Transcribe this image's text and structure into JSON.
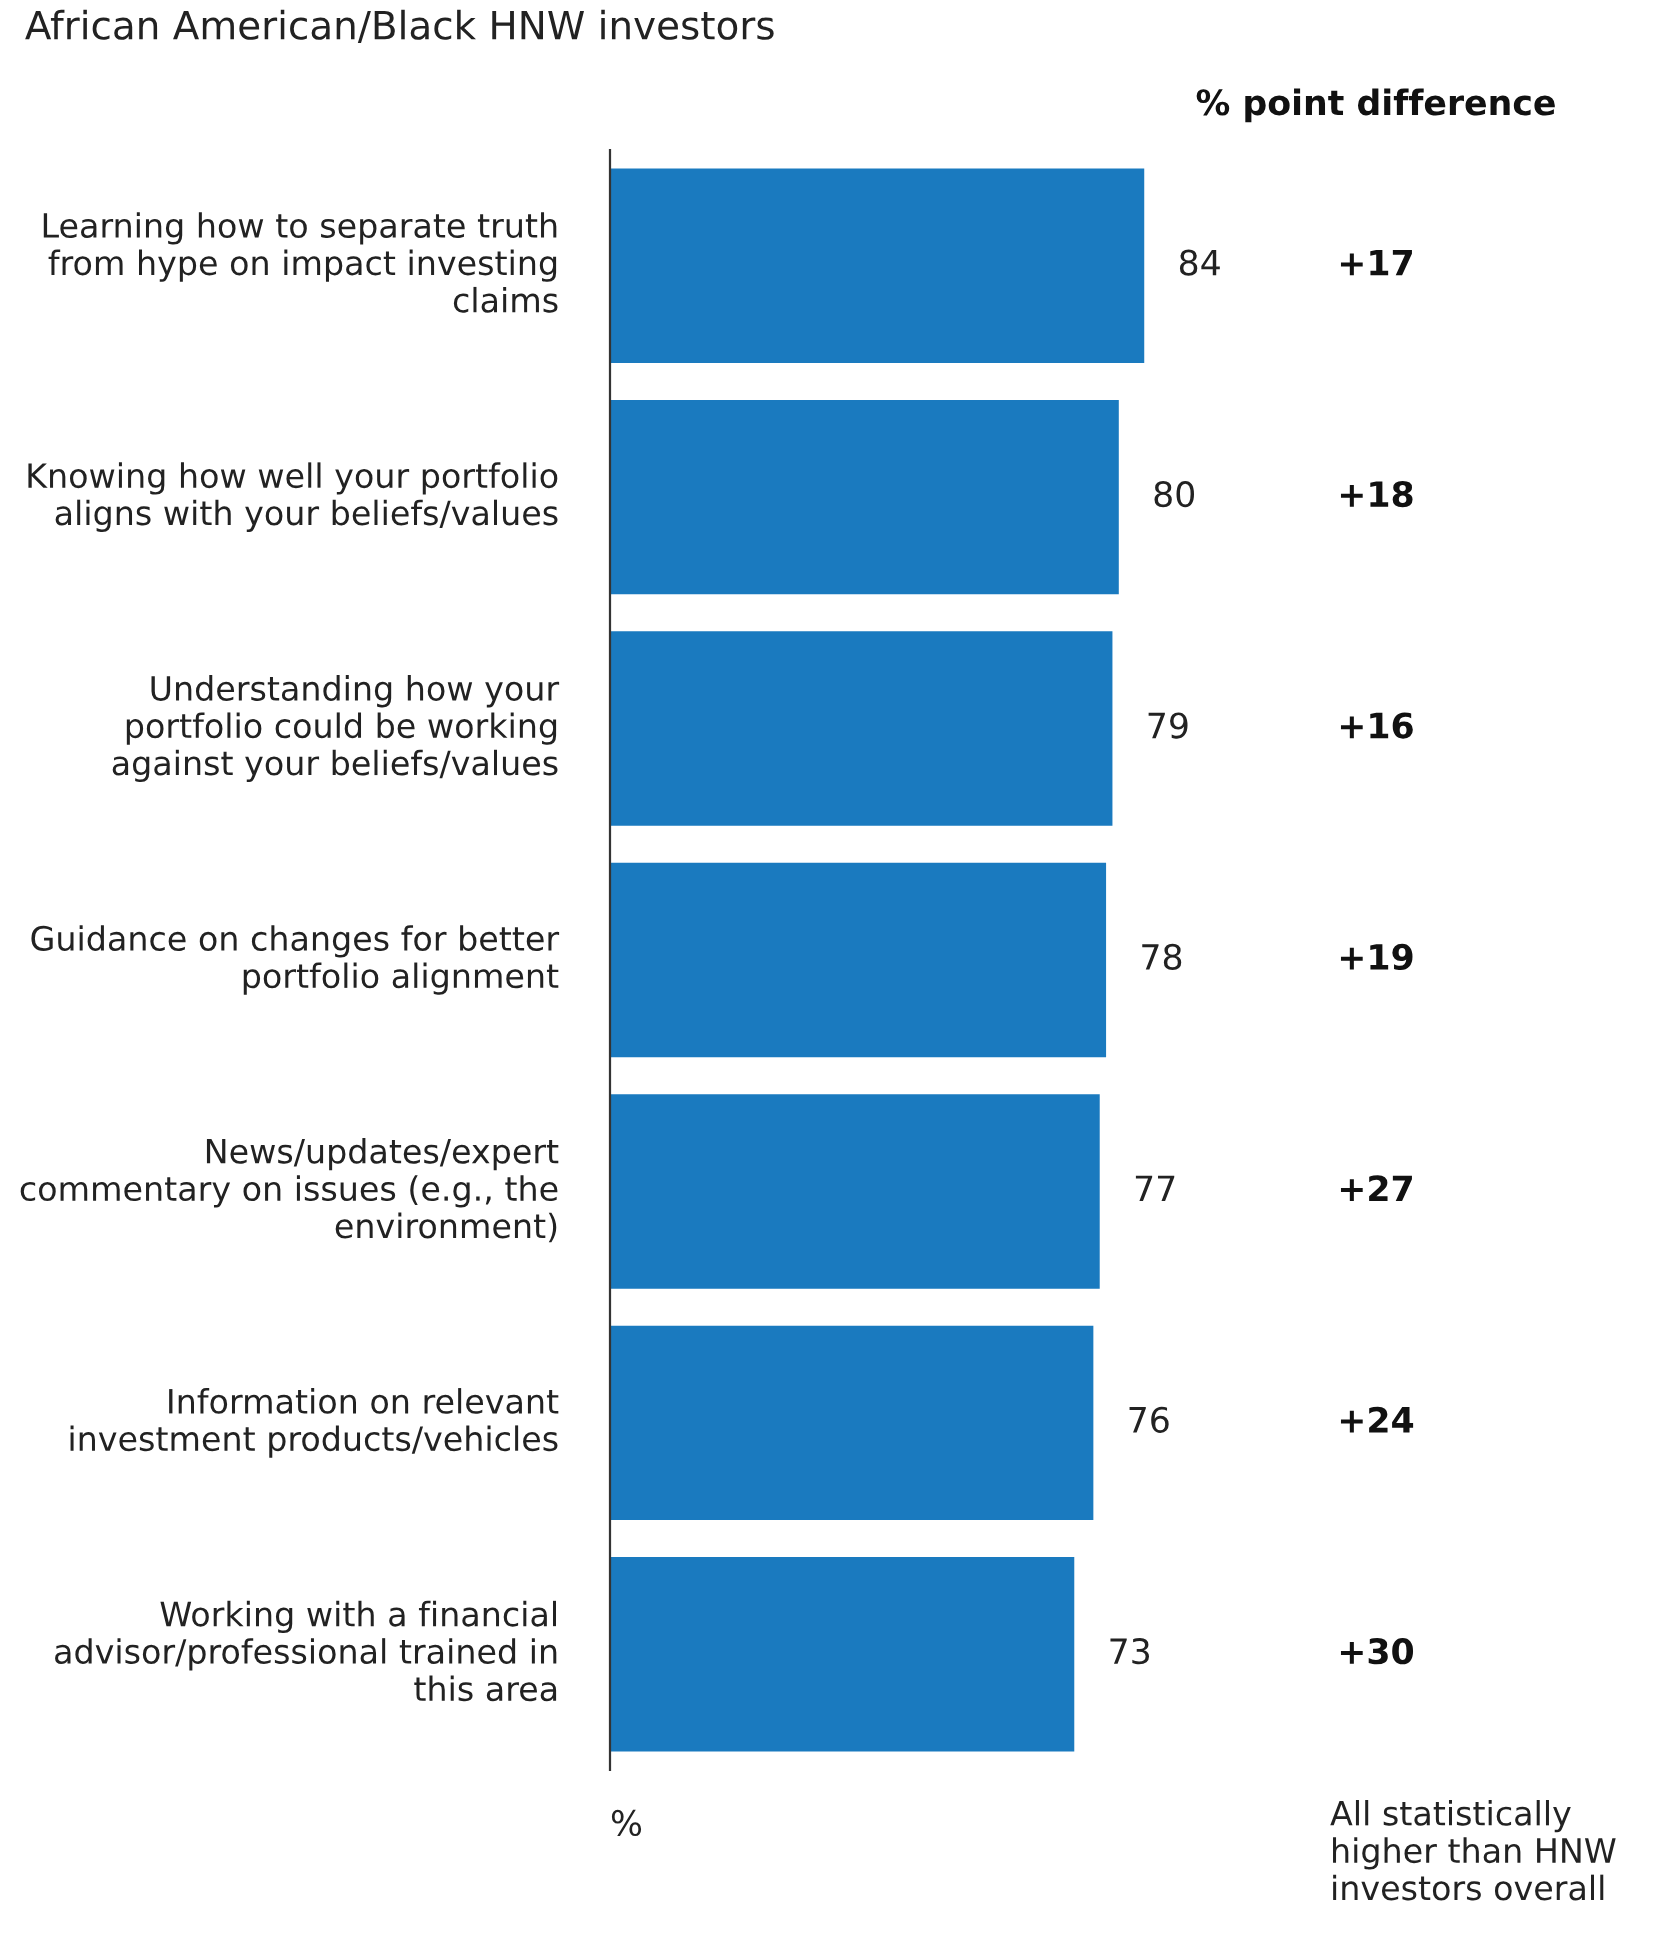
{
  "chart_data": {
    "type": "bar",
    "orientation": "horizontal",
    "title": "African American/Black HNW investors",
    "categories": [
      "Learning how to separate truth from hype on impact investing claims",
      "Knowing how well your portfolio aligns with your beliefs/values",
      "Understanding how your portfolio could be working against your beliefs/values",
      "Guidance on changes for better portfolio alignment",
      "News/updates/expert commentary on issues (e.g., the environment)",
      "Information on relevant investment products/vehicles",
      "Working with a financial advisor/professional trained in this area"
    ],
    "values": [
      84,
      80,
      79,
      78,
      77,
      76,
      73
    ],
    "color": "#1a7abf",
    "data_labels": true,
    "annotations": [
      "% point difference",
      "%",
      "All statistically higher than HNW investors overall",
      "+17",
      "+18",
      "+16",
      "+19",
      "+27",
      "+24",
      "+30"
    ]
  }
}
